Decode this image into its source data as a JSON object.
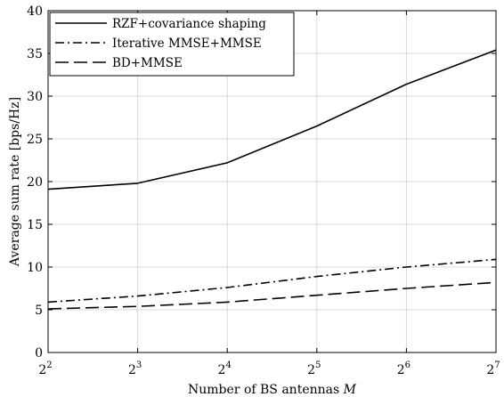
{
  "chart_data": {
    "type": "line",
    "x": [
      2,
      3,
      4,
      5,
      6,
      7
    ],
    "x_tick_labels": [
      {
        "base": "2",
        "exp": "2"
      },
      {
        "base": "2",
        "exp": "3"
      },
      {
        "base": "2",
        "exp": "4"
      },
      {
        "base": "2",
        "exp": "5"
      },
      {
        "base": "2",
        "exp": "6"
      },
      {
        "base": "2",
        "exp": "7"
      }
    ],
    "xlim": [
      2,
      7
    ],
    "ylim": [
      0,
      40
    ],
    "y_ticks": [
      "0",
      "5",
      "10",
      "15",
      "20",
      "25",
      "30",
      "35",
      "40"
    ],
    "xlabel": "Number of BS antennas",
    "xlabel_var": "M",
    "ylabel": "Average sum rate [bps/Hz]",
    "grid": true,
    "legend_position": "top-left",
    "series": [
      {
        "name": "RZF+covariance shaping",
        "style": "solid",
        "color": "#000000",
        "values": [
          19.1,
          19.8,
          22.2,
          26.5,
          31.4,
          35.4
        ]
      },
      {
        "name": "Iterative MMSE+MMSE",
        "style": "dashdot",
        "color": "#000000",
        "values": [
          5.9,
          6.6,
          7.6,
          8.9,
          10.0,
          10.9
        ]
      },
      {
        "name": "BD+MMSE",
        "style": "dashed",
        "color": "#000000",
        "values": [
          5.1,
          5.4,
          5.9,
          6.7,
          7.5,
          8.2
        ]
      }
    ]
  }
}
